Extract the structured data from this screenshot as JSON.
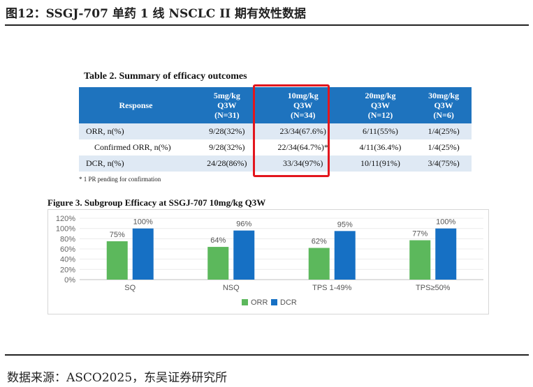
{
  "figure": {
    "title": "图12：SSGJ-707 单药 1 线 NSCLC II 期有效性数据",
    "source": "数据来源：ASCO2025，东吴证券研究所"
  },
  "table": {
    "title": "Table 2. Summary of efficacy outcomes",
    "headers": [
      {
        "lines": [
          "Response"
        ]
      },
      {
        "lines": [
          "5mg/kg",
          "Q3W",
          "(N=31)"
        ]
      },
      {
        "lines": [
          "10mg/kg",
          "Q3W",
          "(N=34)"
        ]
      },
      {
        "lines": [
          "20mg/kg",
          "Q3W",
          "(N=12)"
        ]
      },
      {
        "lines": [
          "30mg/kg",
          "Q3W",
          "(N=6)"
        ]
      }
    ],
    "rows": [
      {
        "label": "ORR, n(%)",
        "cells": [
          "9/28(32%)",
          "23/34(67.6%)",
          "6/11(55%)",
          "1/4(25%)"
        ]
      },
      {
        "label": "Confirmed ORR, n(%)",
        "cells": [
          "9/28(32%)",
          "22/34(64.7%)*",
          "4/11(36.4%)",
          "1/4(25%)"
        ]
      },
      {
        "label": "DCR, n(%)",
        "cells": [
          "24/28(86%)",
          "33/34(97%)",
          "10/11(91%)",
          "3/4(75%)"
        ]
      }
    ],
    "footnote": "* 1 PR pending for confirmation",
    "highlight_color": "#e3161d",
    "header_color": "#1e73be"
  },
  "chart_data": {
    "type": "bar",
    "title": "Figure 3. Subgroup Efficacy at SSGJ-707 10mg/kg Q3W",
    "categories": [
      "SQ",
      "NSQ",
      "TPS 1-49%",
      "TPS≥50%"
    ],
    "series": [
      {
        "name": "ORR",
        "values": [
          75,
          64,
          62,
          77
        ],
        "labels": [
          "75%",
          "64%",
          "62%",
          "77%"
        ],
        "color": "#5cb85c"
      },
      {
        "name": "DCR",
        "values": [
          100,
          96,
          95,
          100
        ],
        "labels": [
          "100%",
          "96%",
          "95%",
          "100%"
        ],
        "color": "#1670c4"
      }
    ],
    "ylim": [
      0,
      120
    ],
    "yticks": [
      "0%",
      "20%",
      "40%",
      "60%",
      "80%",
      "100%",
      "120%"
    ],
    "legend_position": "bottom-center",
    "xlabel": "",
    "ylabel": ""
  }
}
